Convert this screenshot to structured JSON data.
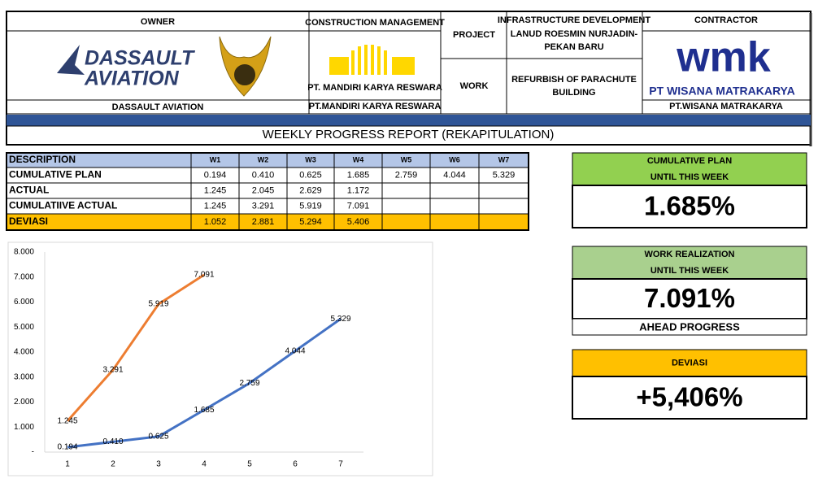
{
  "header": {
    "owner": {
      "label": "OWNER",
      "logo_lines": [
        "DASSAULT",
        "AVIATION"
      ],
      "name": "DASSAULT AVIATION"
    },
    "construction_management": {
      "label": "CONSTRUCTION MANAGEMENT",
      "logo_text": "PT. MANDIRI KARYA RESWARA",
      "name": "PT.MANDIRI KARYA RESWARA"
    },
    "project": {
      "label": "PROJECT",
      "lines": [
        "INFRASTRUCTURE DEVELOPMENT",
        "LANUD ROESMIN NURJADIN-",
        "PEKAN BARU"
      ]
    },
    "work": {
      "label": "WORK",
      "lines": [
        "REFURBISH OF PARACHUTE",
        "BUILDING"
      ]
    },
    "contractor": {
      "label": "CONTRACTOR",
      "logo_mark": "wmk",
      "logo_text": "PT WISANA MATRAKARYA",
      "name": "PT.WISANA MATRAKARYA"
    },
    "report_title": "WEEKLY PROGRESS REPORT (REKAPITULATION)"
  },
  "table": {
    "header": [
      "DESCRIPTION",
      "W1",
      "W2",
      "W3",
      "W4",
      "W5",
      "W6",
      "W7"
    ],
    "rows": [
      [
        "CUMULATIVE PLAN",
        "0.194",
        "0.410",
        "0.625",
        "1.685",
        "2.759",
        "4.044",
        "5.329"
      ],
      [
        "ACTUAL",
        "1.245",
        "2.045",
        "2.629",
        "1.172",
        null,
        null,
        null
      ],
      [
        "CUMULATIIVE ACTUAL",
        "1.245",
        "3.291",
        "5.919",
        "7.091",
        null,
        null,
        null
      ],
      [
        "DEVIASI",
        "1.052",
        "2.881",
        "5.294",
        "5.406",
        null,
        null,
        null
      ]
    ]
  },
  "panels": [
    {
      "title_lines": [
        "CUMULATIVE PLAN",
        "UNTIL THIS WEEK"
      ],
      "value": "1.685%",
      "color": "#92d050"
    },
    {
      "title_lines": [
        "WORK REALIZATION",
        "UNTIL THIS WEEK"
      ],
      "value": "7.091%",
      "note": "AHEAD PROGRESS",
      "color": "#a9d08e"
    },
    {
      "title_lines": [
        "DEVIASI"
      ],
      "value": "+5,406%",
      "color": "#ffc000"
    }
  ],
  "chart_data": {
    "type": "line",
    "categories": [
      "1",
      "2",
      "3",
      "4",
      "5",
      "6",
      "7"
    ],
    "series": [
      {
        "color": "#4472c4",
        "values": [
          0.194,
          0.41,
          0.625,
          1.685,
          2.759,
          4.044,
          5.329
        ],
        "value_labels": [
          "0.194",
          "0.410",
          "0.625",
          "1.685",
          "2.759",
          "4.044",
          "5.329"
        ]
      },
      {
        "color": "#ed7d31",
        "values": [
          1.245,
          3.291,
          5.919,
          7.091,
          null,
          null,
          null
        ],
        "value_labels": [
          "1.245",
          "3.291",
          "5.919",
          "7.091",
          null,
          null,
          null
        ]
      }
    ],
    "ylim": [
      0,
      8
    ],
    "yticks": [
      {
        "value": 0,
        "label": "-"
      },
      {
        "value": 1,
        "label": "1.000"
      },
      {
        "value": 2,
        "label": "2.000"
      },
      {
        "value": 3,
        "label": "3.000"
      },
      {
        "value": 4,
        "label": "4.000"
      },
      {
        "value": 5,
        "label": "5.000"
      },
      {
        "value": 6,
        "label": "6.000"
      },
      {
        "value": 7,
        "label": "7.000"
      },
      {
        "value": 8,
        "label": "8.000"
      }
    ],
    "grid": false
  }
}
